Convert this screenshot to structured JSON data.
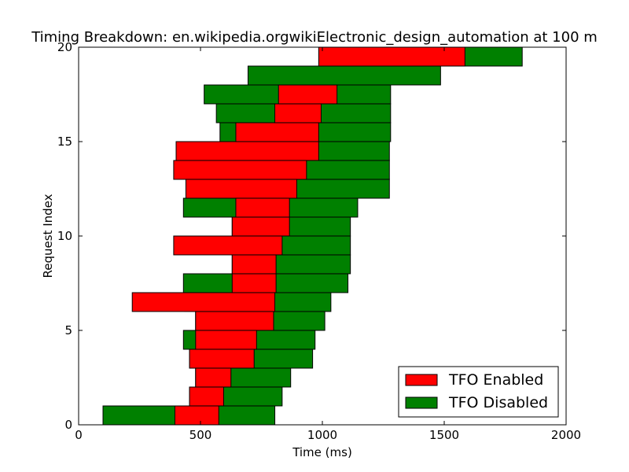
{
  "chart_data": {
    "type": "bar",
    "orientation": "horizontal-floating",
    "title": "Timing Breakdown: en.wikipedia.orgwikiElectronic_design_automation at 100 m",
    "xlabel": "Time (ms)",
    "ylabel": "Request Index",
    "xlim": [
      0,
      2000
    ],
    "ylim": [
      0,
      20
    ],
    "xticks": [
      0,
      500,
      1000,
      1500,
      2000
    ],
    "yticks": [
      0,
      5,
      10,
      15,
      20
    ],
    "legend_position": "lower-right",
    "series": [
      {
        "name": "TFO Disabled",
        "color": "#008000",
        "bars": [
          [
            0,
            100,
            805
          ],
          [
            1,
            455,
            835
          ],
          [
            2,
            480,
            870
          ],
          [
            3,
            455,
            960
          ],
          [
            4,
            430,
            970
          ],
          [
            5,
            480,
            1010
          ],
          [
            6,
            435,
            1035
          ],
          [
            7,
            430,
            1105
          ],
          [
            8,
            630,
            1115
          ],
          [
            9,
            630,
            1115
          ],
          [
            10,
            630,
            1115
          ],
          [
            11,
            430,
            1145
          ],
          [
            12,
            645,
            1275
          ],
          [
            13,
            580,
            1275
          ],
          [
            14,
            580,
            1275
          ],
          [
            15,
            580,
            1280
          ],
          [
            16,
            565,
            1280
          ],
          [
            17,
            515,
            1280
          ],
          [
            18,
            695,
            1485
          ],
          [
            19,
            1115,
            1820
          ]
        ]
      },
      {
        "name": "TFO Enabled",
        "color": "#ff0000",
        "bars": [
          [
            0,
            395,
            575
          ],
          [
            1,
            455,
            595
          ],
          [
            2,
            480,
            625
          ],
          [
            3,
            455,
            720
          ],
          [
            4,
            480,
            730
          ],
          [
            5,
            480,
            800
          ],
          [
            6,
            220,
            805
          ],
          [
            7,
            630,
            810
          ],
          [
            8,
            630,
            810
          ],
          [
            9,
            390,
            835
          ],
          [
            10,
            630,
            865
          ],
          [
            11,
            645,
            865
          ],
          [
            12,
            440,
            895
          ],
          [
            13,
            390,
            935
          ],
          [
            14,
            400,
            985
          ],
          [
            15,
            645,
            985
          ],
          [
            16,
            805,
            995
          ],
          [
            17,
            820,
            1060
          ],
          [
            19,
            985,
            1585
          ]
        ]
      }
    ]
  }
}
